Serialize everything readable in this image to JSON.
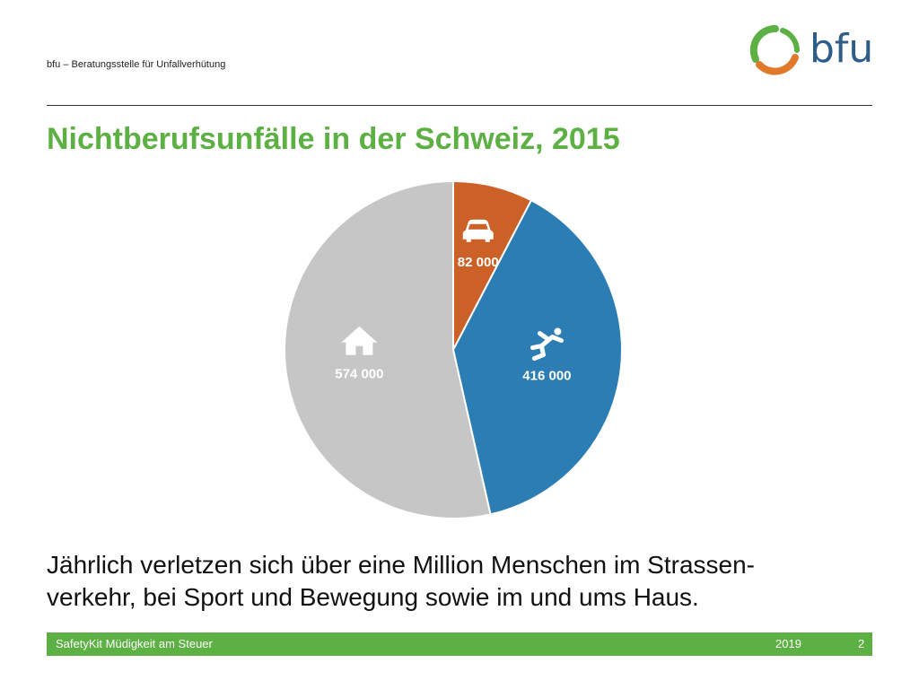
{
  "header": {
    "org_name": "bfu – Beratungsstelle für Unfallverhütung",
    "logo_text": "bfu"
  },
  "title": "Nichtberufsunfälle in der Schweiz, 2015",
  "chart_data": {
    "type": "pie",
    "title": "",
    "slices": [
      {
        "label": "82 000",
        "value": 82000,
        "icon": "car-icon",
        "color": "#cc6127"
      },
      {
        "label": "416 000",
        "value": 416000,
        "icon": "runner-icon",
        "color": "#2b7db3"
      },
      {
        "label": "574 000",
        "value": 574000,
        "icon": "house-icon",
        "color": "#c6c6c6"
      }
    ]
  },
  "body_text": {
    "line1": "Jährlich verletzen sich über eine Million Menschen im Strassen-",
    "line2": "verkehr, bei Sport und Bewegung sowie im und ums Haus."
  },
  "footer": {
    "left": "SafetyKit Müdigkeit am Steuer",
    "year": "2019",
    "page": "2"
  },
  "colors": {
    "accent_green": "#5db043",
    "logo_orange": "#e07a2a",
    "logo_blue": "#2f5d8a"
  }
}
